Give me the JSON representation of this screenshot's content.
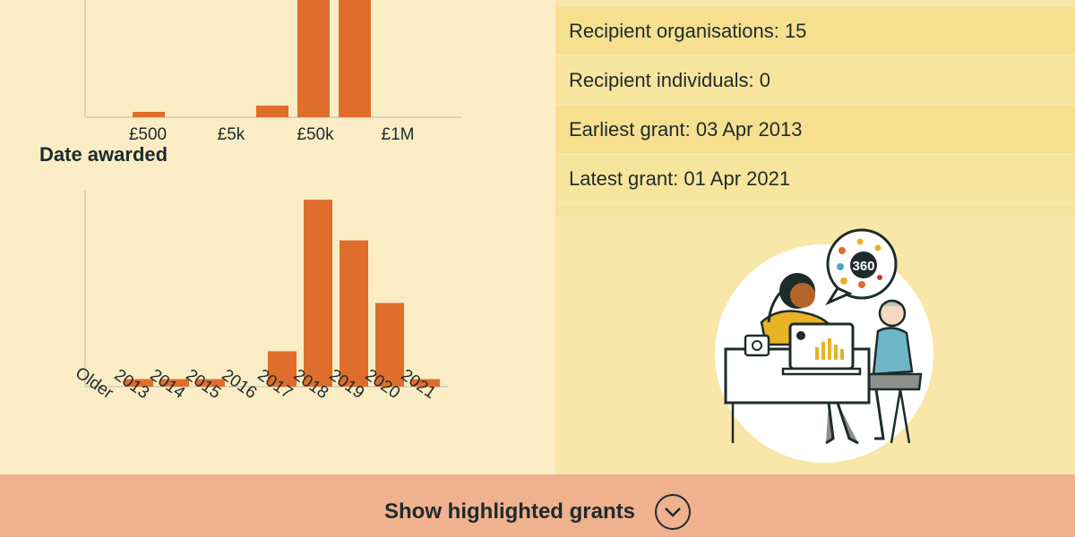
{
  "stats": [
    {
      "label": "Recipient organisations: 15"
    },
    {
      "label": "Recipient individuals: 0"
    },
    {
      "label": "Earliest grant: 03 Apr 2013"
    },
    {
      "label": "Latest grant: 01 Apr 2021"
    }
  ],
  "footer": {
    "label": "Show highlighted grants",
    "icon": "chevron-down-icon"
  },
  "colors": {
    "bar": "#DF6E2C",
    "left_bg": "#FAEDC6",
    "right_bg": "#F8E7A9",
    "footer_bg": "#EFB18E",
    "text": "#1E2B2B"
  },
  "illustration": {
    "badge_text": "360",
    "icon": "people-at-desk-illustration"
  },
  "chart_data": [
    {
      "type": "bar",
      "title": "",
      "categories": [
        "£500",
        "",
        "£5k",
        "",
        "£50k",
        "",
        "£1M"
      ],
      "tick_labels": [
        "£500",
        "£5k",
        "£50k",
        "£1M"
      ],
      "values": [
        0,
        0.5,
        0,
        0,
        1,
        15,
        15
      ],
      "note": "bars cropped at top of viewport"
    },
    {
      "type": "bar",
      "title": "Date awarded",
      "categories": [
        "Older",
        "2013",
        "2014",
        "2015",
        "2016",
        "2017",
        "2018",
        "2019",
        "2020",
        "2021"
      ],
      "values": [
        0,
        1,
        1,
        1,
        0,
        4.7,
        24.8,
        19.4,
        11.1,
        1
      ]
    }
  ]
}
